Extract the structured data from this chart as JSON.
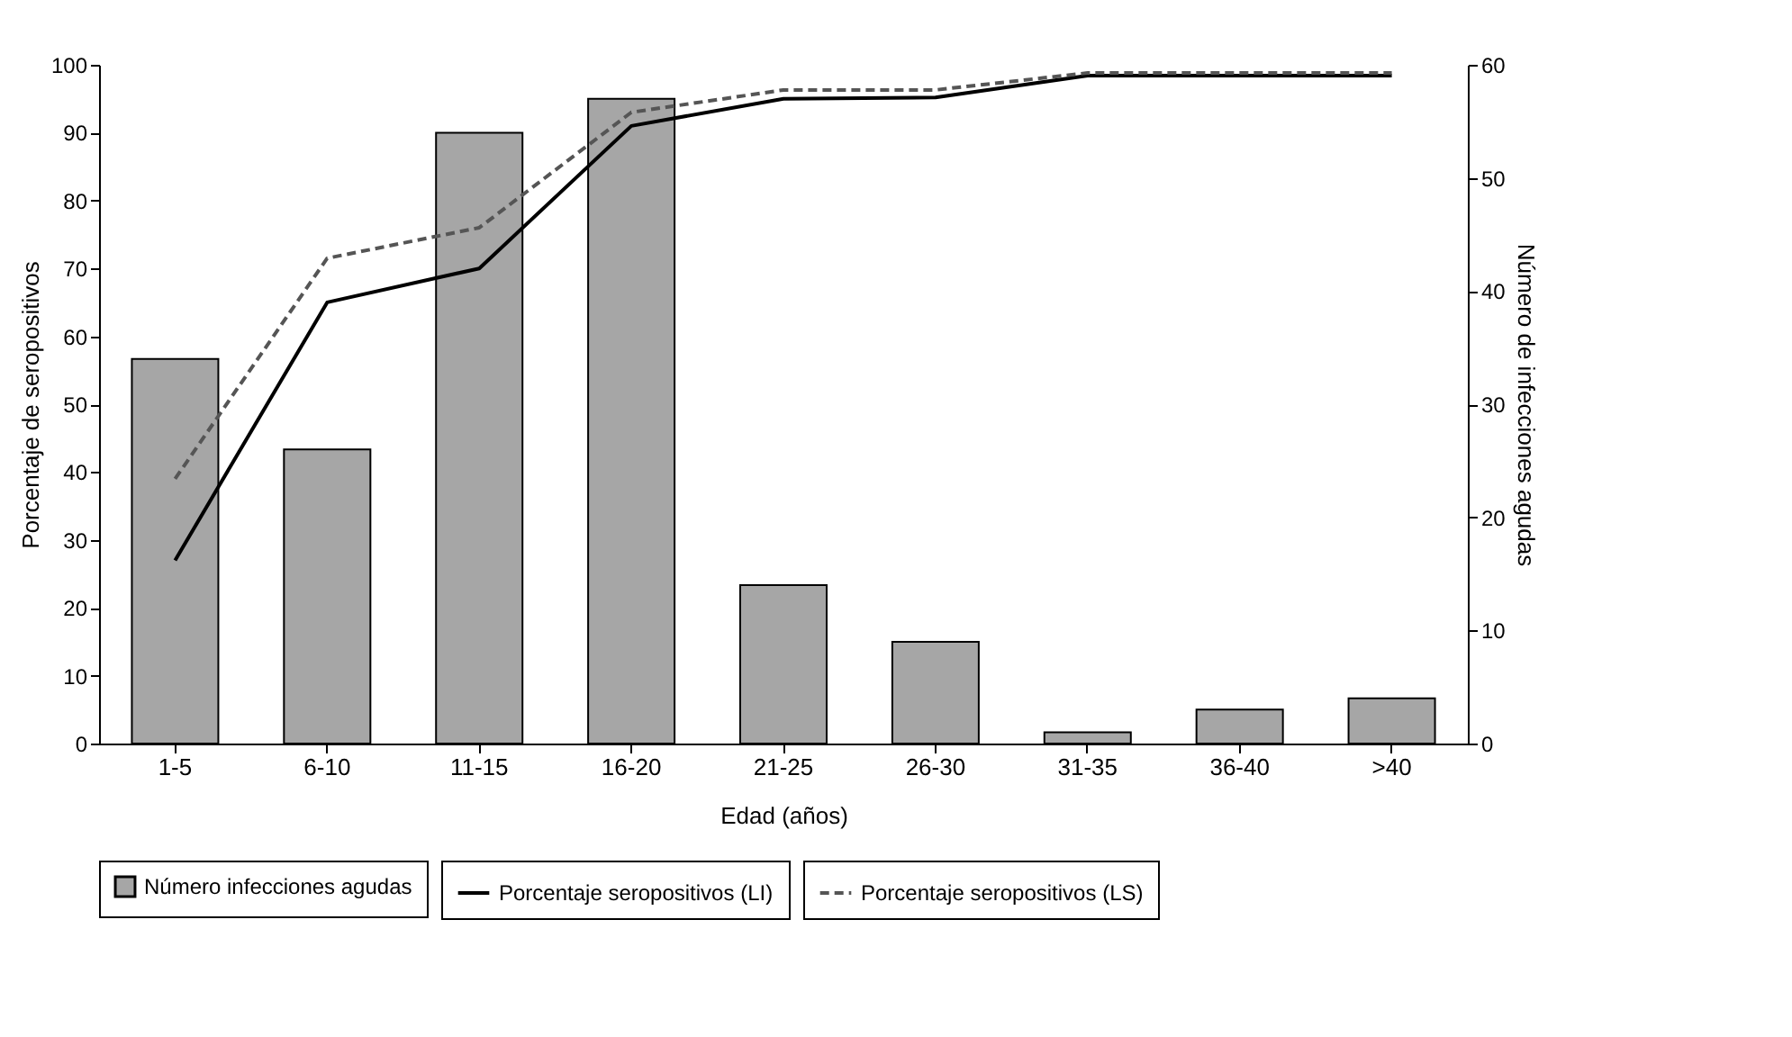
{
  "chart_data": {
    "type": "bar",
    "xlabel": "Edad (años)",
    "ylabel": "Porcentaje de seropositivos",
    "y2label": "Número de infecciones agudas",
    "categories": [
      "1-5",
      "6-10",
      "11-15",
      "16-20",
      "21-25",
      "26-30",
      "31-35",
      "36-40",
      ">40"
    ],
    "series": [
      {
        "name": "Número infecciones agudas",
        "axis": "y2",
        "color": "#a6a6a6",
        "values": [
          34,
          26,
          54,
          57,
          14,
          9,
          1,
          3,
          4
        ]
      },
      {
        "name": "Porcentaje seropositivos (LI)",
        "type": "line",
        "line_style": "solid",
        "color": "#000000",
        "values": [
          27,
          65,
          70,
          91,
          95,
          95.2,
          98.4,
          98.4,
          98.4
        ]
      },
      {
        "name": "Porcentaje seropositivos (LS)",
        "type": "line",
        "line_style": "dashed",
        "color": "#555555",
        "values": [
          39,
          71.5,
          76,
          93,
          96.3,
          96.3,
          98.8,
          98.8,
          98.8
        ]
      }
    ],
    "ylim": [
      0,
      100
    ],
    "yticks": [
      0,
      10,
      20,
      30,
      40,
      50,
      60,
      70,
      80,
      90,
      100
    ],
    "y2lim": [
      0,
      60
    ],
    "y2ticks": [
      0,
      10,
      20,
      30,
      40,
      50,
      60
    ],
    "grid": false,
    "legend": "bottom"
  }
}
